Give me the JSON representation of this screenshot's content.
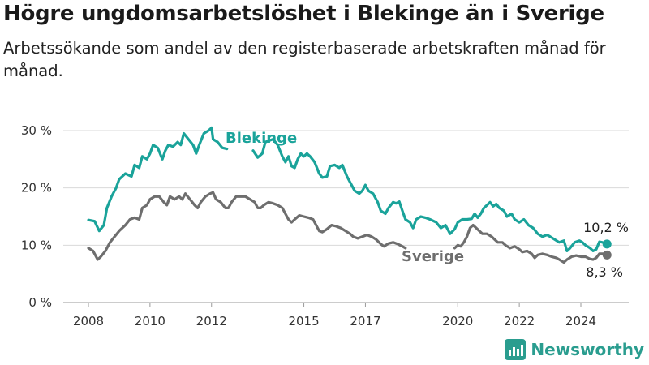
{
  "header": {
    "title": "Högre ungdomsarbetslöshet i Blekinge än i Sverige",
    "subtitle": "Arbetssökande som andel av den registerbaserade arbetskraften månad för månad."
  },
  "brand": {
    "name": "Newsworthy",
    "icon": "newsworthy-logo-icon"
  },
  "colors": {
    "blekinge": "#1aa39a",
    "sverige": "#6e6e6e",
    "grid": "#d9d9d9",
    "text": "#333333"
  },
  "chart_data": {
    "type": "line",
    "title": "Högre ungdomsarbetslöshet i Blekinge än i Sverige",
    "subtitle": "Arbetssökande som andel av den registerbaserade arbetskraften månad för månad.",
    "xlabel": "",
    "ylabel": "",
    "xlim": [
      2007.8,
      2025.5
    ],
    "ylim": [
      0,
      30
    ],
    "grid": true,
    "x_ticks": [
      2008,
      2010,
      2012,
      2015,
      2017,
      2020,
      2022,
      2024
    ],
    "y_ticks": [
      {
        "value": 0,
        "label": "0 %"
      },
      {
        "value": 10,
        "label": "10 %"
      },
      {
        "value": 20,
        "label": "20 %"
      },
      {
        "value": 30,
        "label": "30 %"
      }
    ],
    "series": [
      {
        "name": "Blekinge",
        "color": "#1aa39a",
        "end_label": "10,2 %",
        "points": [
          [
            2008.0,
            14.4
          ],
          [
            2008.2,
            14.2
          ],
          [
            2008.35,
            12.5
          ],
          [
            2008.5,
            13.5
          ],
          [
            2008.6,
            16.5
          ],
          [
            2008.75,
            18.5
          ],
          [
            2008.9,
            20.0
          ],
          [
            2009.0,
            21.5
          ],
          [
            2009.2,
            22.5
          ],
          [
            2009.4,
            22.0
          ],
          [
            2009.5,
            24.0
          ],
          [
            2009.65,
            23.5
          ],
          [
            2009.75,
            25.5
          ],
          [
            2009.9,
            25.0
          ],
          [
            2010.0,
            26.0
          ],
          [
            2010.1,
            27.5
          ],
          [
            2010.25,
            27.0
          ],
          [
            2010.4,
            25.0
          ],
          [
            2010.5,
            26.5
          ],
          [
            2010.6,
            27.5
          ],
          [
            2010.75,
            27.2
          ],
          [
            2010.9,
            28.0
          ],
          [
            2011.0,
            27.5
          ],
          [
            2011.1,
            29.5
          ],
          [
            2011.25,
            28.5
          ],
          [
            2011.4,
            27.5
          ],
          [
            2011.5,
            26.0
          ],
          [
            2011.6,
            27.5
          ],
          [
            2011.75,
            29.5
          ],
          [
            2011.9,
            30.0
          ],
          [
            2012.0,
            30.5
          ],
          [
            2012.05,
            28.5
          ],
          [
            2012.2,
            28.0
          ],
          [
            2012.35,
            27.0
          ],
          [
            2012.5,
            26.8
          ],
          [
            2013.35,
            26.5
          ],
          [
            2013.5,
            25.3
          ],
          [
            2013.65,
            26.0
          ],
          [
            2013.75,
            28.0
          ],
          [
            2014.0,
            28.5
          ],
          [
            2014.15,
            27.5
          ],
          [
            2014.3,
            25.5
          ],
          [
            2014.4,
            24.5
          ],
          [
            2014.5,
            25.5
          ],
          [
            2014.6,
            23.8
          ],
          [
            2014.7,
            23.5
          ],
          [
            2014.8,
            25.0
          ],
          [
            2014.9,
            26.0
          ],
          [
            2015.0,
            25.5
          ],
          [
            2015.1,
            26.0
          ],
          [
            2015.2,
            25.5
          ],
          [
            2015.35,
            24.5
          ],
          [
            2015.5,
            22.5
          ],
          [
            2015.6,
            21.8
          ],
          [
            2015.75,
            22.0
          ],
          [
            2015.85,
            23.8
          ],
          [
            2016.0,
            24.0
          ],
          [
            2016.15,
            23.5
          ],
          [
            2016.25,
            24.0
          ],
          [
            2016.4,
            22.0
          ],
          [
            2016.5,
            21.0
          ],
          [
            2016.65,
            19.5
          ],
          [
            2016.8,
            19.0
          ],
          [
            2016.9,
            19.5
          ],
          [
            2017.0,
            20.5
          ],
          [
            2017.1,
            19.5
          ],
          [
            2017.25,
            19.0
          ],
          [
            2017.4,
            17.5
          ],
          [
            2017.5,
            16.0
          ],
          [
            2017.65,
            15.5
          ],
          [
            2017.75,
            16.5
          ],
          [
            2017.9,
            17.5
          ],
          [
            2018.0,
            17.3
          ],
          [
            2018.1,
            17.6
          ],
          [
            2018.2,
            16.0
          ],
          [
            2018.3,
            14.5
          ],
          [
            2018.45,
            14.0
          ],
          [
            2018.55,
            13.0
          ],
          [
            2018.65,
            14.5
          ],
          [
            2018.8,
            15.0
          ],
          [
            2018.95,
            14.8
          ],
          [
            2019.1,
            14.5
          ],
          [
            2019.3,
            14.0
          ],
          [
            2019.45,
            13.0
          ],
          [
            2019.6,
            13.5
          ],
          [
            2019.75,
            12.0
          ],
          [
            2019.9,
            12.8
          ],
          [
            2020.0,
            14.0
          ],
          [
            2020.15,
            14.5
          ],
          [
            2020.3,
            14.5
          ],
          [
            2020.45,
            14.6
          ],
          [
            2020.55,
            15.5
          ],
          [
            2020.65,
            14.8
          ],
          [
            2020.75,
            15.5
          ],
          [
            2020.85,
            16.5
          ],
          [
            2020.95,
            17.0
          ],
          [
            2021.05,
            17.5
          ],
          [
            2021.15,
            16.8
          ],
          [
            2021.25,
            17.2
          ],
          [
            2021.35,
            16.5
          ],
          [
            2021.5,
            16.0
          ],
          [
            2021.6,
            15.0
          ],
          [
            2021.75,
            15.5
          ],
          [
            2021.85,
            14.5
          ],
          [
            2022.0,
            14.0
          ],
          [
            2022.15,
            14.5
          ],
          [
            2022.3,
            13.5
          ],
          [
            2022.45,
            13.0
          ],
          [
            2022.6,
            12.0
          ],
          [
            2022.75,
            11.5
          ],
          [
            2022.9,
            11.8
          ],
          [
            2023.0,
            11.5
          ],
          [
            2023.15,
            11.0
          ],
          [
            2023.3,
            10.5
          ],
          [
            2023.45,
            10.8
          ],
          [
            2023.55,
            9.0
          ],
          [
            2023.65,
            9.5
          ],
          [
            2023.8,
            10.5
          ],
          [
            2023.95,
            10.8
          ],
          [
            2024.05,
            10.5
          ],
          [
            2024.15,
            10.0
          ],
          [
            2024.3,
            9.5
          ],
          [
            2024.4,
            9.0
          ],
          [
            2024.5,
            9.3
          ],
          [
            2024.6,
            10.6
          ],
          [
            2024.7,
            10.5
          ],
          [
            2024.85,
            10.2
          ]
        ]
      },
      {
        "name": "Sverige",
        "color": "#6e6e6e",
        "end_label": "8,3 %",
        "points": [
          [
            2008.0,
            9.5
          ],
          [
            2008.15,
            9.0
          ],
          [
            2008.3,
            7.5
          ],
          [
            2008.4,
            8.0
          ],
          [
            2008.55,
            9.0
          ],
          [
            2008.7,
            10.5
          ],
          [
            2008.85,
            11.5
          ],
          [
            2009.0,
            12.5
          ],
          [
            2009.2,
            13.5
          ],
          [
            2009.35,
            14.5
          ],
          [
            2009.5,
            14.8
          ],
          [
            2009.65,
            14.5
          ],
          [
            2009.75,
            16.5
          ],
          [
            2009.9,
            17.0
          ],
          [
            2010.0,
            18.0
          ],
          [
            2010.15,
            18.5
          ],
          [
            2010.3,
            18.5
          ],
          [
            2010.45,
            17.5
          ],
          [
            2010.55,
            17.0
          ],
          [
            2010.65,
            18.5
          ],
          [
            2010.8,
            18.0
          ],
          [
            2010.95,
            18.5
          ],
          [
            2011.05,
            18.0
          ],
          [
            2011.15,
            19.0
          ],
          [
            2011.3,
            18.0
          ],
          [
            2011.45,
            17.0
          ],
          [
            2011.55,
            16.5
          ],
          [
            2011.65,
            17.5
          ],
          [
            2011.8,
            18.5
          ],
          [
            2011.95,
            19.0
          ],
          [
            2012.05,
            19.2
          ],
          [
            2012.15,
            18.0
          ],
          [
            2012.3,
            17.5
          ],
          [
            2012.45,
            16.5
          ],
          [
            2012.55,
            16.5
          ],
          [
            2012.65,
            17.5
          ],
          [
            2012.8,
            18.5
          ],
          [
            2012.95,
            18.5
          ],
          [
            2013.1,
            18.5
          ],
          [
            2013.25,
            18.0
          ],
          [
            2013.4,
            17.5
          ],
          [
            2013.5,
            16.5
          ],
          [
            2013.6,
            16.5
          ],
          [
            2013.7,
            17.0
          ],
          [
            2013.85,
            17.5
          ],
          [
            2014.0,
            17.3
          ],
          [
            2014.15,
            17.0
          ],
          [
            2014.3,
            16.5
          ],
          [
            2014.4,
            15.5
          ],
          [
            2014.5,
            14.5
          ],
          [
            2014.6,
            14.0
          ],
          [
            2014.7,
            14.5
          ],
          [
            2014.85,
            15.2
          ],
          [
            2015.0,
            15.0
          ],
          [
            2015.15,
            14.8
          ],
          [
            2015.3,
            14.5
          ],
          [
            2015.4,
            13.5
          ],
          [
            2015.5,
            12.5
          ],
          [
            2015.6,
            12.3
          ],
          [
            2015.75,
            12.8
          ],
          [
            2015.9,
            13.5
          ],
          [
            2016.05,
            13.3
          ],
          [
            2016.2,
            13.0
          ],
          [
            2016.35,
            12.5
          ],
          [
            2016.5,
            12.0
          ],
          [
            2016.6,
            11.5
          ],
          [
            2016.75,
            11.2
          ],
          [
            2016.9,
            11.5
          ],
          [
            2017.05,
            11.8
          ],
          [
            2017.2,
            11.5
          ],
          [
            2017.35,
            11.0
          ],
          [
            2017.5,
            10.2
          ],
          [
            2017.6,
            9.8
          ],
          [
            2017.75,
            10.3
          ],
          [
            2017.9,
            10.5
          ],
          [
            2018.05,
            10.2
          ],
          [
            2018.2,
            9.8
          ],
          [
            2018.3,
            9.5
          ],
          [
            2019.9,
            9.5
          ],
          [
            2020.0,
            10.0
          ],
          [
            2020.1,
            9.8
          ],
          [
            2020.2,
            10.5
          ],
          [
            2020.3,
            11.5
          ],
          [
            2020.4,
            13.0
          ],
          [
            2020.5,
            13.5
          ],
          [
            2020.6,
            13.0
          ],
          [
            2020.7,
            12.5
          ],
          [
            2020.8,
            12.0
          ],
          [
            2020.95,
            12.0
          ],
          [
            2021.1,
            11.5
          ],
          [
            2021.2,
            11.0
          ],
          [
            2021.3,
            10.5
          ],
          [
            2021.45,
            10.5
          ],
          [
            2021.55,
            10.0
          ],
          [
            2021.7,
            9.5
          ],
          [
            2021.85,
            9.8
          ],
          [
            2022.0,
            9.3
          ],
          [
            2022.1,
            8.8
          ],
          [
            2022.25,
            9.0
          ],
          [
            2022.4,
            8.5
          ],
          [
            2022.5,
            7.8
          ],
          [
            2022.6,
            8.3
          ],
          [
            2022.75,
            8.5
          ],
          [
            2022.9,
            8.3
          ],
          [
            2023.05,
            8.0
          ],
          [
            2023.2,
            7.8
          ],
          [
            2023.3,
            7.5
          ],
          [
            2023.45,
            7.0
          ],
          [
            2023.55,
            7.5
          ],
          [
            2023.7,
            8.0
          ],
          [
            2023.85,
            8.2
          ],
          [
            2024.0,
            8.0
          ],
          [
            2024.15,
            8.0
          ],
          [
            2024.3,
            7.6
          ],
          [
            2024.4,
            7.5
          ],
          [
            2024.5,
            7.8
          ],
          [
            2024.6,
            8.5
          ],
          [
            2024.75,
            8.5
          ],
          [
            2024.85,
            8.3
          ]
        ]
      }
    ]
  }
}
